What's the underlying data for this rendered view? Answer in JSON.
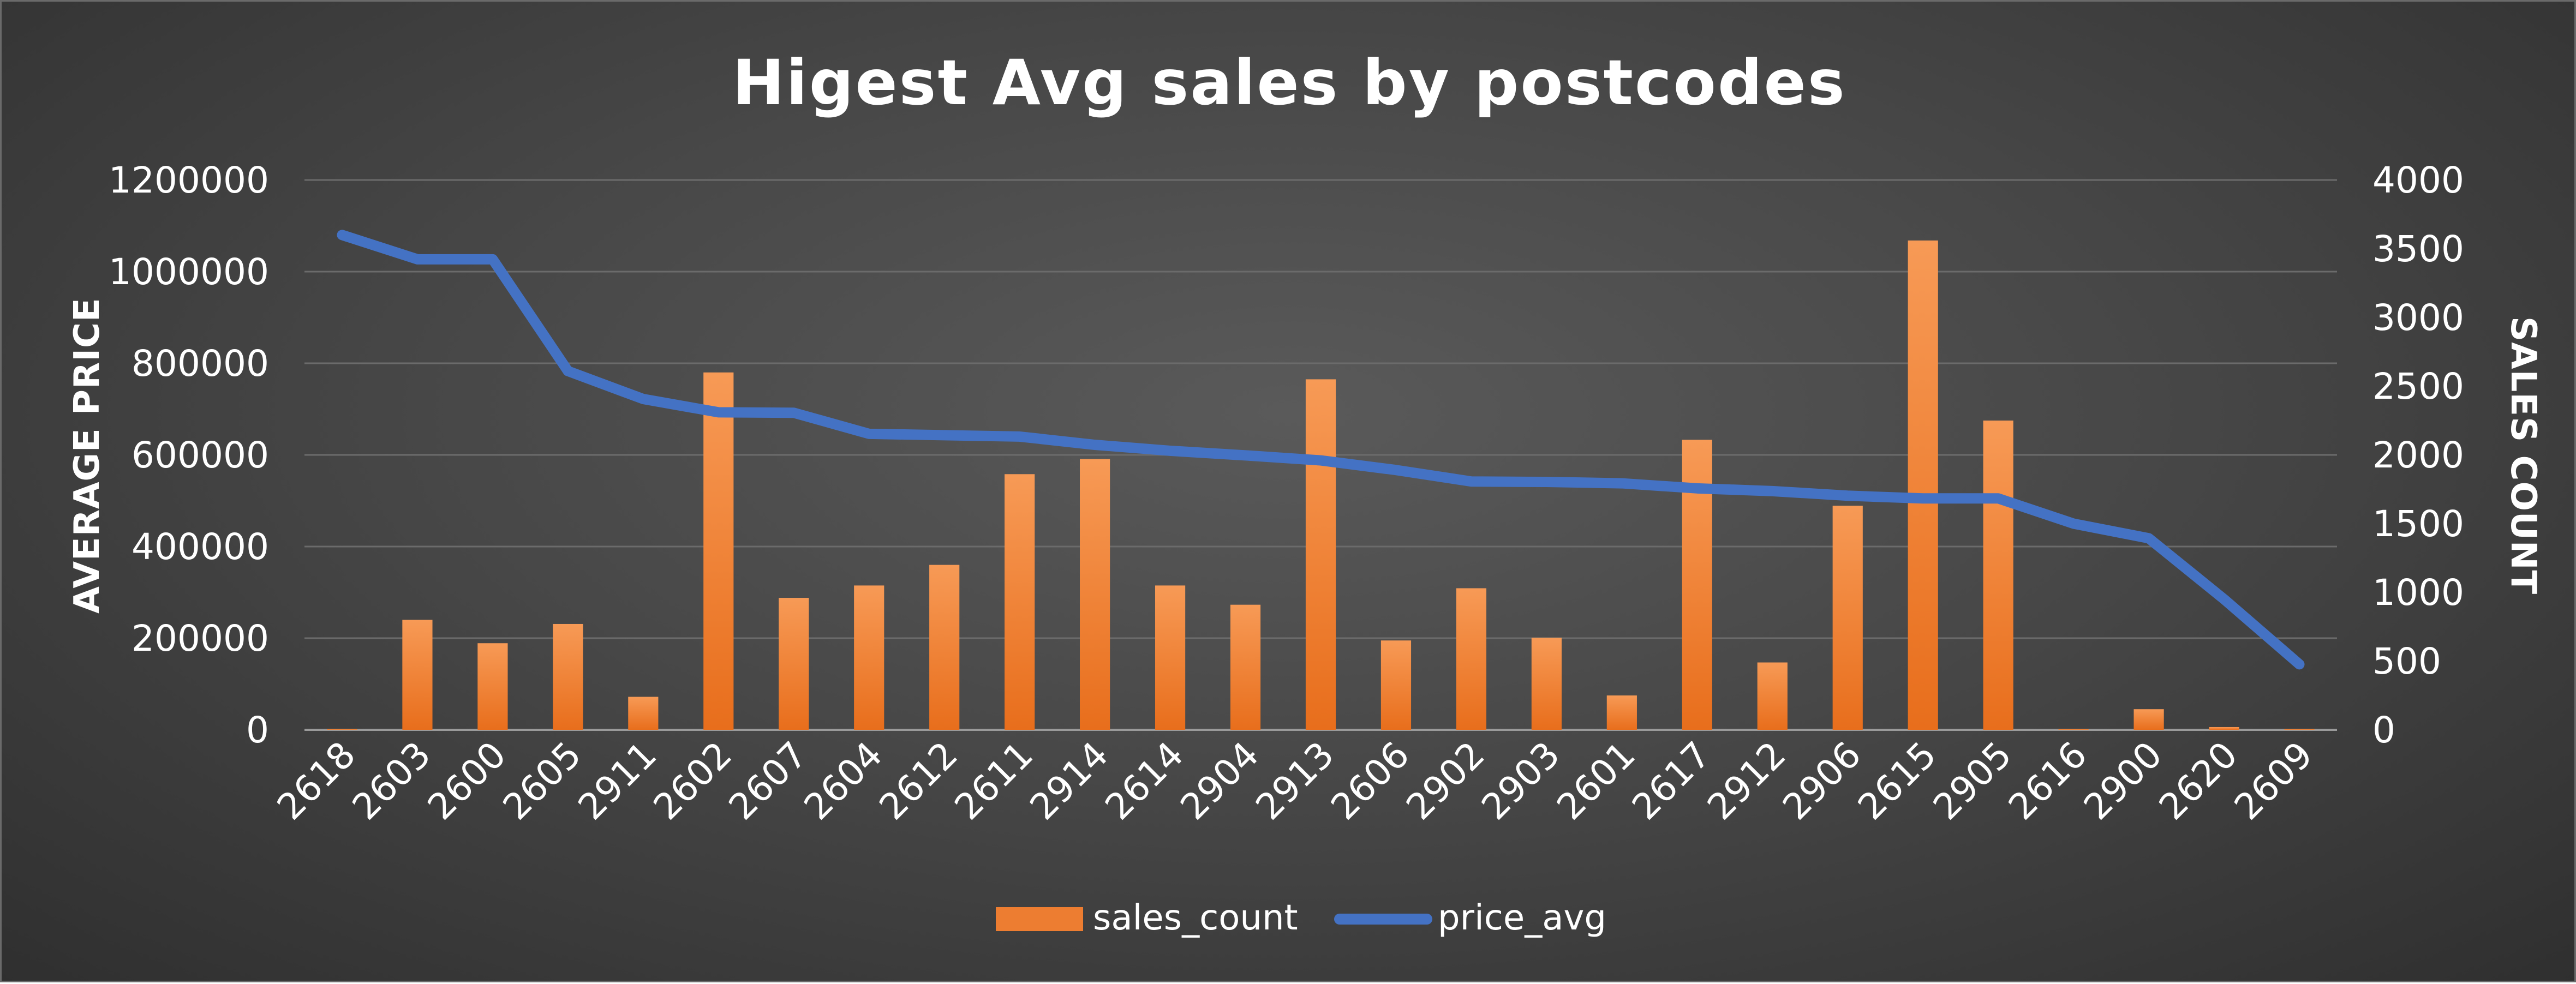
{
  "chart_data": {
    "type": "bar+line",
    "title": "Higest Avg sales by postcodes",
    "ylabel": "AVERAGE PRICE",
    "y2label": "SALES COUNT",
    "categories": [
      "2618",
      "2603",
      "2600",
      "2605",
      "2911",
      "2602",
      "2607",
      "2604",
      "2612",
      "2611",
      "2914",
      "2614",
      "2904",
      "2913",
      "2606",
      "2902",
      "2903",
      "2601",
      "2617",
      "2912",
      "2906",
      "2615",
      "2905",
      "2616",
      "2900",
      "2620",
      "2609"
    ],
    "ylim": [
      0,
      1200000
    ],
    "y_ticks": [
      0,
      200000,
      400000,
      600000,
      800000,
      1000000,
      1200000
    ],
    "y2lim": [
      0,
      4000
    ],
    "y2_ticks": [
      0,
      500,
      1000,
      1500,
      2000,
      2500,
      3000,
      3500,
      4000
    ],
    "grid": true,
    "legend_position": "bottom",
    "series": [
      {
        "name": "sales_count",
        "type": "bar",
        "axis": "right",
        "color": "#ED7D31",
        "values": [
          5,
          800,
          630,
          770,
          240,
          2600,
          960,
          1050,
          1200,
          1860,
          1970,
          1050,
          910,
          2550,
          650,
          1030,
          670,
          250,
          2110,
          490,
          1630,
          3560,
          2250,
          5,
          150,
          20,
          5
        ]
      },
      {
        "name": "price_avg",
        "type": "line",
        "axis": "left",
        "color": "#4472C4",
        "values": [
          1080000,
          1027000,
          1027000,
          783000,
          722000,
          693000,
          692000,
          646000,
          643000,
          640000,
          622000,
          609000,
          599000,
          588000,
          567000,
          542000,
          541000,
          538000,
          527000,
          521000,
          511000,
          505000,
          505000,
          450000,
          418000,
          285000,
          143000
        ]
      }
    ]
  }
}
